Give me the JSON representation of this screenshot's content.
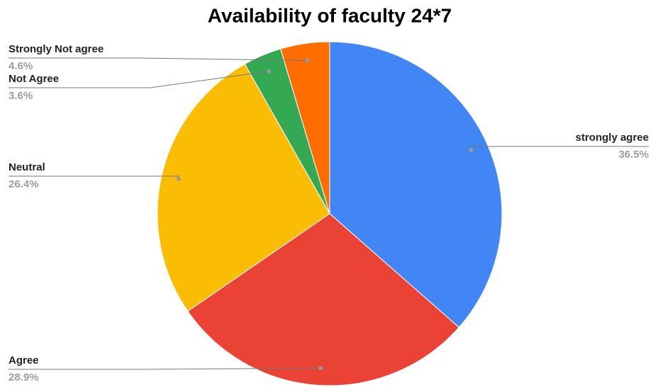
{
  "chart_data": {
    "type": "pie",
    "title": "Availability of faculty 24*7",
    "categories": [
      "strongly agree",
      "Agree",
      "Neutral",
      "Not Agree",
      "Strongly Not agree"
    ],
    "values": [
      36.5,
      28.9,
      26.4,
      3.6,
      4.6
    ],
    "value_labels": [
      "36.5%",
      "28.9%",
      "26.4%",
      "3.6%",
      "4.6%"
    ],
    "colors": [
      "#4285f4",
      "#ea4335",
      "#fbbc04",
      "#34a853",
      "#ff6d01"
    ]
  }
}
